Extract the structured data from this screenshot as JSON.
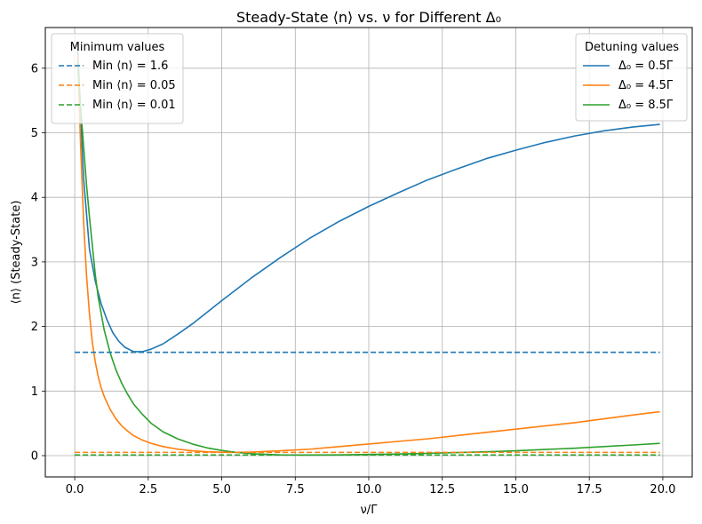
{
  "chart_data": {
    "type": "line",
    "title": "Steady-State ⟨n⟩ vs. ν for Different Δ₀",
    "xlabel": "ν/Γ",
    "ylabel": "⟨n⟩ (Steady-State)",
    "xlim": [
      -1.0,
      21.0
    ],
    "ylim": [
      -0.33,
      6.63
    ],
    "x_ticks": [
      0.0,
      2.5,
      5.0,
      7.5,
      10.0,
      12.5,
      15.0,
      17.5,
      20.0
    ],
    "x_tick_labels": [
      "0.0",
      "2.5",
      "5.0",
      "7.5",
      "10.0",
      "12.5",
      "15.0",
      "17.5",
      "20.0"
    ],
    "y_ticks": [
      0,
      1,
      2,
      3,
      4,
      5,
      6
    ],
    "y_tick_labels": [
      "0",
      "1",
      "2",
      "3",
      "4",
      "5",
      "6"
    ],
    "grid": true,
    "legend_detuning": {
      "title": "Detuning values",
      "placement": "top-right",
      "entries": [
        "Δ₀ = 0.5Γ",
        "Δ₀ = 4.5Γ",
        "Δ₀ = 8.5Γ"
      ]
    },
    "legend_minimum": {
      "title": "Minimum values",
      "placement": "top-left",
      "entries": [
        "Min ⟨n⟩ = 1.6",
        "Min ⟨n⟩ = 0.05",
        "Min ⟨n⟩ = 0.01"
      ]
    },
    "series": [
      {
        "name": "Δ₀ = 0.5Γ",
        "color": "#1f77b4",
        "style": "solid",
        "x": [
          0.1,
          0.3,
          0.5,
          0.7,
          0.9,
          1.1,
          1.3,
          1.5,
          1.7,
          2.0,
          2.3,
          2.6,
          3.0,
          3.5,
          4.0,
          5.0,
          6.0,
          7.0,
          8.0,
          9.0,
          10.0,
          11.0,
          12.0,
          13.0,
          14.0,
          15.0,
          16.0,
          17.0,
          18.0,
          19.0,
          19.9
        ],
        "y": [
          6.3,
          4.3,
          3.2,
          2.7,
          2.35,
          2.1,
          1.9,
          1.77,
          1.68,
          1.61,
          1.61,
          1.65,
          1.73,
          1.88,
          2.04,
          2.4,
          2.75,
          3.07,
          3.37,
          3.63,
          3.86,
          4.07,
          4.27,
          4.44,
          4.6,
          4.73,
          4.85,
          4.95,
          5.03,
          5.09,
          5.13
        ]
      },
      {
        "name": "Δ₀ = 4.5Γ",
        "color": "#ff7f0e",
        "style": "solid",
        "x": [
          0.1,
          0.2,
          0.3,
          0.4,
          0.5,
          0.6,
          0.7,
          0.8,
          0.9,
          1.0,
          1.2,
          1.4,
          1.6,
          1.8,
          2.0,
          2.3,
          2.6,
          3.0,
          3.5,
          4.0,
          4.5,
          5.0,
          5.5,
          6.0,
          7.0,
          8.0,
          9.0,
          10.0,
          11.0,
          12.0,
          13.0,
          14.0,
          15.0,
          16.0,
          17.0,
          18.0,
          19.0,
          19.9
        ],
        "y": [
          6.2,
          4.8,
          3.65,
          2.8,
          2.2,
          1.75,
          1.45,
          1.22,
          1.05,
          0.92,
          0.72,
          0.57,
          0.46,
          0.38,
          0.31,
          0.24,
          0.19,
          0.14,
          0.1,
          0.075,
          0.06,
          0.052,
          0.05,
          0.055,
          0.075,
          0.1,
          0.14,
          0.18,
          0.22,
          0.26,
          0.31,
          0.36,
          0.41,
          0.46,
          0.51,
          0.57,
          0.63,
          0.68
        ]
      },
      {
        "name": "Δ₀ = 8.5Γ",
        "color": "#2ca02c",
        "style": "solid",
        "x": [
          0.1,
          0.2,
          0.3,
          0.4,
          0.5,
          0.6,
          0.7,
          0.8,
          1.0,
          1.2,
          1.4,
          1.6,
          1.8,
          2.0,
          2.3,
          2.6,
          3.0,
          3.5,
          4.0,
          4.5,
          5.0,
          5.5,
          6.0,
          6.5,
          7.0,
          8.0,
          9.0,
          10.0,
          11.0,
          12.0,
          13.0,
          14.0,
          15.0,
          16.0,
          17.0,
          18.0,
          19.0,
          19.9
        ],
        "y": [
          6.1,
          5.4,
          4.8,
          4.2,
          3.7,
          3.25,
          2.8,
          2.45,
          1.95,
          1.6,
          1.33,
          1.12,
          0.95,
          0.8,
          0.64,
          0.5,
          0.37,
          0.26,
          0.18,
          0.12,
          0.08,
          0.05,
          0.03,
          0.02,
          0.012,
          0.01,
          0.012,
          0.018,
          0.025,
          0.035,
          0.048,
          0.06,
          0.075,
          0.095,
          0.115,
          0.14,
          0.165,
          0.19
        ]
      },
      {
        "name": "Min ⟨n⟩ = 1.6",
        "color": "#1f77b4",
        "style": "dashed",
        "x": [
          0.0,
          19.9
        ],
        "y": [
          1.6,
          1.6
        ]
      },
      {
        "name": "Min ⟨n⟩ = 0.05",
        "color": "#ff7f0e",
        "style": "dashed",
        "x": [
          0.0,
          19.9
        ],
        "y": [
          0.05,
          0.05
        ]
      },
      {
        "name": "Min ⟨n⟩ = 0.01",
        "color": "#2ca02c",
        "style": "dashed",
        "x": [
          0.0,
          19.9
        ],
        "y": [
          0.01,
          0.01
        ]
      }
    ]
  }
}
